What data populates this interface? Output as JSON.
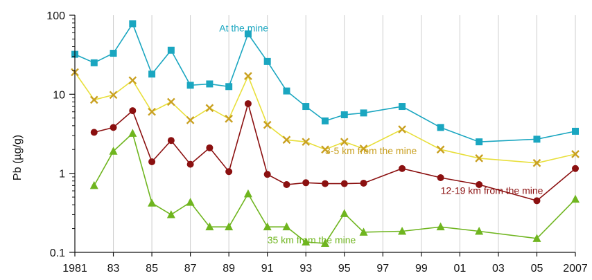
{
  "chart_data": {
    "type": "line",
    "title": "",
    "xlabel": "",
    "ylabel": "Pb (µg/g)",
    "yscale": "log",
    "ylim": [
      0.1,
      100
    ],
    "xlim": [
      1981,
      2007
    ],
    "grid": "vertical",
    "legend": "inline labels",
    "x_ticks": [
      {
        "value": 1981,
        "label": "1981"
      },
      {
        "value": 1983,
        "label": "83"
      },
      {
        "value": 1985,
        "label": "85"
      },
      {
        "value": 1987,
        "label": "87"
      },
      {
        "value": 1989,
        "label": "89"
      },
      {
        "value": 1991,
        "label": "91"
      },
      {
        "value": 1993,
        "label": "93"
      },
      {
        "value": 1995,
        "label": "95"
      },
      {
        "value": 1997,
        "label": "97"
      },
      {
        "value": 1999,
        "label": "99"
      },
      {
        "value": 2001,
        "label": "01"
      },
      {
        "value": 2003,
        "label": "03"
      },
      {
        "value": 2005,
        "label": "05"
      },
      {
        "value": 2007,
        "label": "2007"
      }
    ],
    "y_ticks": [
      {
        "value": 0.1,
        "label": "0.1"
      },
      {
        "value": 1,
        "label": "1"
      },
      {
        "value": 10,
        "label": "10"
      },
      {
        "value": 100,
        "label": "100"
      }
    ],
    "series": [
      {
        "name": "At the mine",
        "color": "#1aa6c0",
        "marker": "square",
        "x": [
          1981,
          1982,
          1983,
          1984,
          1985,
          1986,
          1987,
          1988,
          1989,
          1990,
          1991,
          1992,
          1993,
          1994,
          1995,
          1996,
          1998,
          2000,
          2002,
          2005,
          2007
        ],
        "y": [
          32,
          25,
          33,
          78,
          18,
          36,
          13,
          13.5,
          12.5,
          58,
          26,
          11,
          7,
          4.6,
          5.5,
          5.8,
          7,
          3.8,
          2.5,
          2.7,
          3.4
        ]
      },
      {
        "name": "3-5 km from the mine",
        "color": "#c9a020",
        "line_color": "#e8df3a",
        "marker": "x",
        "x": [
          1981,
          1982,
          1983,
          1984,
          1985,
          1986,
          1987,
          1988,
          1989,
          1990,
          1991,
          1992,
          1993,
          1994,
          1995,
          1996,
          1998,
          2000,
          2002,
          2005,
          2007
        ],
        "y": [
          19,
          8.5,
          9.8,
          15,
          6,
          8,
          4.7,
          6.7,
          4.9,
          17,
          4.1,
          2.65,
          2.5,
          2,
          2.5,
          2.05,
          3.6,
          2,
          1.55,
          1.35,
          1.75
        ]
      },
      {
        "name": "12-19 km from the mine",
        "color": "#8b1010",
        "marker": "circle",
        "x": [
          1982,
          1983,
          1984,
          1985,
          1986,
          1987,
          1988,
          1989,
          1990,
          1991,
          1992,
          1993,
          1994,
          1995,
          1996,
          1998,
          2000,
          2002,
          2005,
          2007
        ],
        "y": [
          3.3,
          3.8,
          6.2,
          1.4,
          2.6,
          1.3,
          2.1,
          1.05,
          7.6,
          0.97,
          0.72,
          0.76,
          0.74,
          0.74,
          0.75,
          1.15,
          0.88,
          0.72,
          0.45,
          1.15
        ]
      },
      {
        "name": "35 km from the mine",
        "color": "#6fb51f",
        "marker": "triangle",
        "x": [
          1982,
          1983,
          1984,
          1985,
          1986,
          1987,
          1988,
          1989,
          1990,
          1991,
          1992,
          1993,
          1994,
          1995,
          1996,
          1998,
          2000,
          2002,
          2005,
          2007
        ],
        "y": [
          0.7,
          1.9,
          3.2,
          0.42,
          0.3,
          0.43,
          0.21,
          0.21,
          0.55,
          0.21,
          0.21,
          0.135,
          0.13,
          0.31,
          0.18,
          0.185,
          0.21,
          0.185,
          0.15,
          0.47
        ]
      }
    ],
    "annotations": [
      {
        "series": 0,
        "text": "At the mine",
        "x": 1988.5,
        "y": 62,
        "color": "#1aa6c0"
      },
      {
        "series": 1,
        "text": "3-5 km from the mine",
        "x": 1994,
        "y": 1.75,
        "color": "#c9a020"
      },
      {
        "series": 2,
        "text": "12-19 km from the mine",
        "x": 2000,
        "y": 0.55,
        "color": "#8b1010"
      },
      {
        "series": 3,
        "text": "35 km from the mine",
        "x": 1991,
        "y": 0.13,
        "color": "#6fb51f"
      }
    ],
    "colors": {
      "axis": "#111111",
      "grid": "#cccccc"
    }
  }
}
